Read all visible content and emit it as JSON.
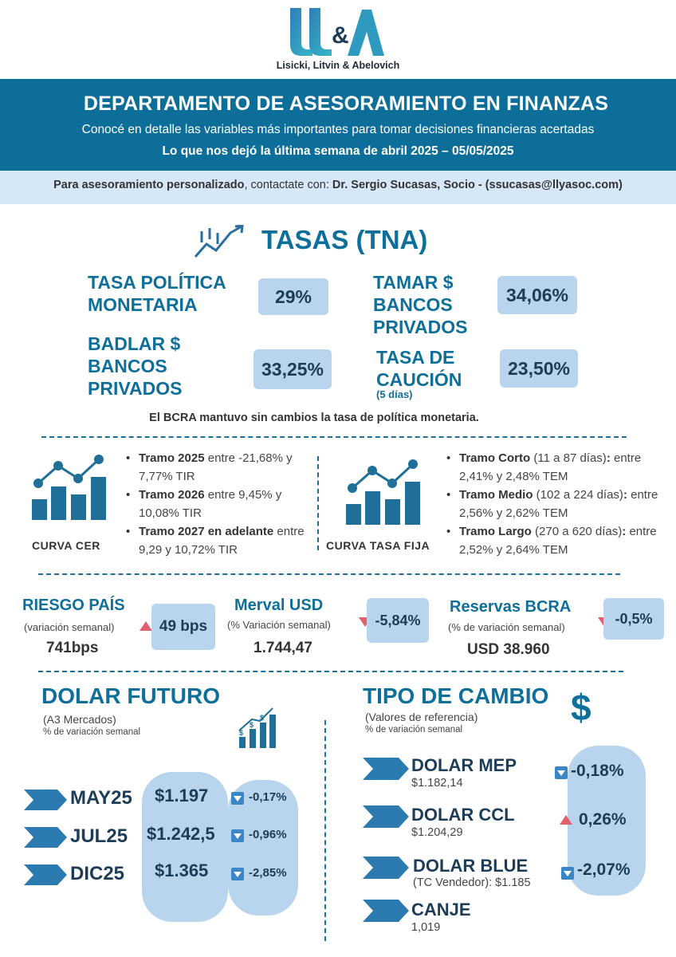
{
  "brand": {
    "logo_text": "LL&A",
    "firm_name": "Lisicki, Litvin & Abelovich",
    "color_primary": "#0e6f9b",
    "color_dark": "#1d3c57",
    "color_light": "#b9d5ee",
    "color_red": "#e06070"
  },
  "header": {
    "title": "DEPARTAMENTO DE ASESORAMIENTO EN FINANZAS",
    "subtitle": "Conocé en detalle las variables más importantes para tomar decisiones financieras acertadas",
    "period": "Lo que nos dejó la última semana de abril 2025 – 05/05/2025"
  },
  "contact": {
    "lead": "Para asesoramiento personalizado",
    "middle": ", contactate con: ",
    "person": "Dr. Sergio Sucasas, Socio - (ssucasas@llyasoc.com)"
  },
  "tasas": {
    "title": "TASAS (TNA)",
    "politica": {
      "label": "TASA POLÍTICA MONETARIA",
      "value": "29%"
    },
    "tamar": {
      "label": "TAMAR $ BANCOS PRIVADOS",
      "value": "34,06%"
    },
    "badlar": {
      "label": "BADLAR $ BANCOS PRIVADOS",
      "value": "33,25%"
    },
    "caucion": {
      "label": "TASA DE CAUCIÓN",
      "sub": "(5 días)",
      "value": "23,50%"
    },
    "note": "El BCRA mantuvo sin cambios la tasa de política monetaria."
  },
  "curvas": {
    "cer": {
      "label": "CURVA CER",
      "items": [
        {
          "name": "Tramo 2025",
          "text": " entre -21,68% y 7,77% TIR"
        },
        {
          "name": "Tramo 2026",
          "text": " entre 9,45% y 10,08% TIR"
        },
        {
          "name": "Tramo 2027 en adelante",
          "text": " entre 9,29 y 10,72% TIR"
        }
      ]
    },
    "fija": {
      "label": "CURVA TASA FIJA",
      "items": [
        {
          "name": "Tramo Corto",
          "detail": " (11 a 87 días)",
          "colon": ":",
          "text": " entre 2,41% y 2,48% TEM"
        },
        {
          "name": "Tramo Medio",
          "detail": " (102 a 224 días)",
          "colon": ":",
          "text": " entre 2,56% y 2,62% TEM"
        },
        {
          "name": "Tramo Largo",
          "detail": " (270 a 620 días)",
          "colon": ":",
          "text": " entre 2,52% y 2,64% TEM"
        }
      ]
    }
  },
  "indicadores": {
    "riesgo": {
      "title": "RIESGO PAÍS",
      "sub": "(variación semanal)",
      "value": "741bps",
      "change": "49 bps"
    },
    "merval": {
      "title": "Merval USD",
      "sub": "(% Variación semanal)",
      "value": "1.744,47",
      "change": "-5,84%"
    },
    "reservas": {
      "title": "Reservas BCRA",
      "sub": "(% de variación semanal)",
      "value": "USD 38.960",
      "change": "-0,5%"
    }
  },
  "dolar_futuro": {
    "title": "DOLAR FUTURO",
    "source": "(A3 Mercados)",
    "sub": "% de variación semanal",
    "rows": [
      {
        "month": "MAY25",
        "price": "$1.197",
        "change": "-0,17%"
      },
      {
        "month": "JUL25",
        "price": "$1.242,5",
        "change": "-0,96%"
      },
      {
        "month": "DIC25",
        "price": "$1.365",
        "change": "-2,85%"
      }
    ]
  },
  "tipo_cambio": {
    "title": "TIPO DE CAMBIO",
    "icon": "$",
    "source": "(Valores de referencia)",
    "sub": "% de variación semanal",
    "mep": {
      "name": "DOLAR MEP",
      "value": "$1.182,14",
      "change": "-0,18%"
    },
    "ccl": {
      "name": "DOLAR CCL",
      "value": "$1.204,29",
      "change": "0,26%"
    },
    "blue": {
      "name": "DOLAR BLUE",
      "value": "(TC Vendedor): $1.185",
      "change": "-2,07%"
    },
    "canje": {
      "name": "CANJE",
      "value": "1,019"
    }
  }
}
